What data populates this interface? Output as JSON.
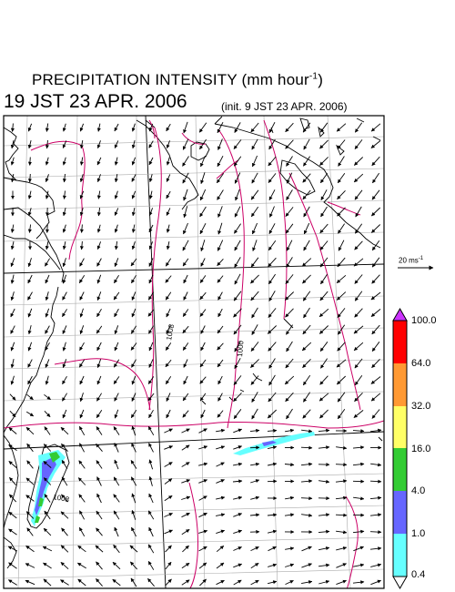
{
  "title": {
    "text": "PRECIPITATION INTENSITY (mm hour",
    "exponent": "-1",
    "close": ")"
  },
  "valid_time": "19 JST 23 APR. 2006",
  "init_time": "(init. 9 JST 23 APR. 2006)",
  "reference_vector": {
    "label": "20 ms",
    "exponent": "-1"
  },
  "contour_labels": [
    "1008",
    "1000",
    "1008"
  ],
  "colorbar": {
    "levels": [
      "0.4",
      "1.0",
      "4.0",
      "16.0",
      "32.0",
      "64.0",
      "100.0"
    ],
    "colors": {
      "lt1": "#66ffff",
      "1_4": "#6666ff",
      "4_16": "#33cc33",
      "16_32": "#ffff66",
      "32_64": "#ff9933",
      "64_100": "#ff0000",
      "over": "#cc33ff",
      "under": "#ffffff"
    }
  },
  "colors": {
    "isobar": "#cc0066",
    "coast": "#000000",
    "grid": "#aaaaaa",
    "vector": "#000000"
  }
}
